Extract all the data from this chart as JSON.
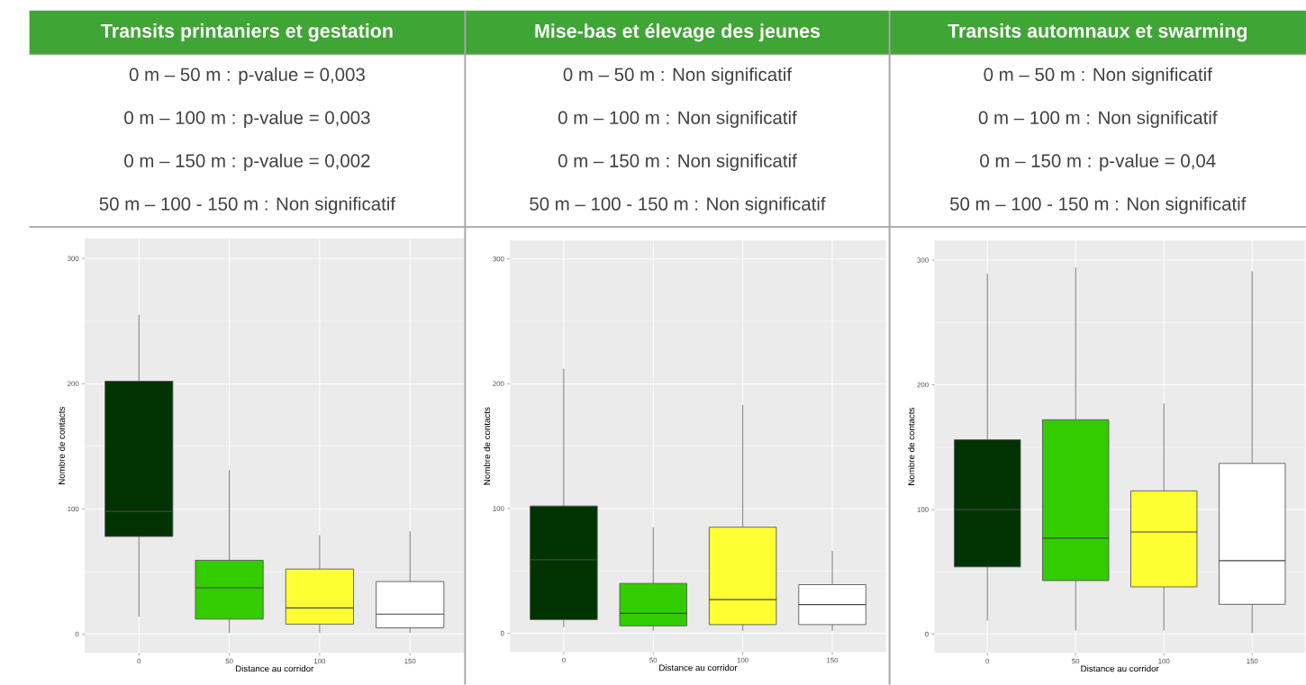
{
  "chart_data": [
    {
      "type": "box",
      "title": "Transits printaniers et gestation",
      "annotations": [
        "0 m – 50 m : p-value = 0,003",
        "0 m – 100 m : p-value = 0,003",
        "0 m – 150 m : p-value = 0,002",
        "50 m – 100 - 150 m : Non significatif"
      ],
      "xlabel": "Distance au corridor",
      "ylabel": "Nombre de contacts",
      "categories": [
        "0",
        "50",
        "100",
        "150"
      ],
      "boxes": [
        {
          "low": 14,
          "q1": 78,
          "median": 98,
          "q3": 202,
          "high": 255
        },
        {
          "low": 1,
          "q1": 12,
          "median": 37,
          "q3": 59,
          "high": 131
        },
        {
          "low": 1,
          "q1": 8,
          "median": 21,
          "q3": 52,
          "high": 79
        },
        {
          "low": 1,
          "q1": 5,
          "median": 16,
          "q3": 42,
          "high": 82
        }
      ],
      "colors": [
        "#003300",
        "#33cc00",
        "#ffff33",
        "#ffffff"
      ],
      "ylim": [
        -15,
        316
      ],
      "yticks": [
        0,
        100,
        200,
        300
      ],
      "grid": true
    },
    {
      "type": "box",
      "title": "Mise-bas et élevage des jeunes",
      "annotations": [
        "0 m – 50 m : Non significatif",
        "0 m – 100 m : Non significatif",
        "0 m – 150 m : Non significatif",
        "50 m – 100 - 150 m : Non significatif"
      ],
      "xlabel": "Distance au corridor",
      "ylabel": "Nombre de contacts",
      "categories": [
        "0",
        "50",
        "100",
        "150"
      ],
      "boxes": [
        {
          "low": 5,
          "q1": 11,
          "median": 59,
          "q3": 102,
          "high": 212
        },
        {
          "low": 2,
          "q1": 6,
          "median": 16,
          "q3": 40,
          "high": 85
        },
        {
          "low": 2,
          "q1": 7,
          "median": 27,
          "q3": 85,
          "high": 183
        },
        {
          "low": 2,
          "q1": 7,
          "median": 23,
          "q3": 39,
          "high": 66
        }
      ],
      "colors": [
        "#003300",
        "#33cc00",
        "#ffff33",
        "#ffffff"
      ],
      "ylim": [
        -15,
        315
      ],
      "yticks": [
        0,
        100,
        200,
        300
      ],
      "grid": true
    },
    {
      "type": "box",
      "title": "Transits automnaux et swarming",
      "annotations": [
        "0 m – 50 m : Non significatif",
        "0 m – 100 m : Non significatif",
        "0 m – 150 m : p-value = 0,04",
        "50 m – 100 - 150 m : Non significatif"
      ],
      "xlabel": "Distance au corridor",
      "ylabel": "Nombre de contacts",
      "categories": [
        "0",
        "50",
        "100",
        "150"
      ],
      "boxes": [
        {
          "low": 11,
          "q1": 54,
          "median": 100,
          "q3": 156,
          "high": 289
        },
        {
          "low": 3,
          "q1": 43,
          "median": 77,
          "q3": 172,
          "high": 294
        },
        {
          "low": 3,
          "q1": 38,
          "median": 82,
          "q3": 115,
          "high": 185
        },
        {
          "low": 1,
          "q1": 24,
          "median": 59,
          "q3": 137,
          "high": 291
        }
      ],
      "colors": [
        "#003300",
        "#33cc00",
        "#ffff33",
        "#ffffff"
      ],
      "ylim": [
        -15,
        316
      ],
      "yticks": [
        0,
        100,
        200,
        300
      ],
      "grid": true
    }
  ]
}
